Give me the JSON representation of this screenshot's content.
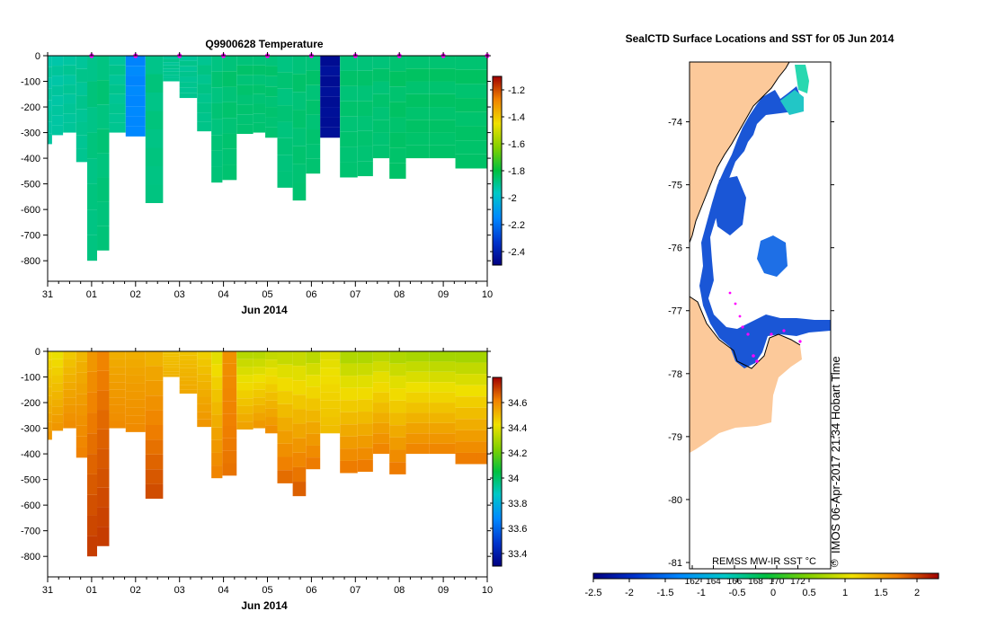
{
  "chart_data": [
    {
      "type": "heatmap",
      "title": "Q9900628  Temperature",
      "xlabel": "Jun 2014",
      "ylabel": "",
      "x_ticks": [
        "31",
        "01",
        "02",
        "03",
        "04",
        "05",
        "06",
        "07",
        "08",
        "09",
        "10"
      ],
      "y_ticks": [
        "0",
        "-100",
        "-200",
        "-300",
        "-400",
        "-500",
        "-600",
        "-700",
        "-800"
      ],
      "ylim": [
        -880,
        0
      ],
      "xlim_days": [
        0,
        10
      ],
      "colorbar": {
        "ticks": [
          "-1.2",
          "-1.4",
          "-1.6",
          "-1.8",
          "-2",
          "-2.2",
          "-2.4"
        ],
        "range": [
          -2.5,
          -1.1
        ]
      },
      "profiles": [
        {
          "t": 0.0,
          "depth": 345,
          "value": -1.92
        },
        {
          "t": 0.2,
          "depth": 310,
          "value": -1.92
        },
        {
          "t": 0.5,
          "depth": 300,
          "value": -1.91
        },
        {
          "t": 0.8,
          "depth": 415,
          "value": -1.9
        },
        {
          "t": 1.0,
          "depth": 800,
          "value": -1.88
        },
        {
          "t": 1.25,
          "depth": 760,
          "value": -1.87
        },
        {
          "t": 1.55,
          "depth": 300,
          "value": -1.9
        },
        {
          "t": 2.0,
          "depth": 315,
          "value": -2.15
        },
        {
          "t": 2.45,
          "depth": 575,
          "value": -1.88
        },
        {
          "t": 2.8,
          "depth": 100,
          "value": -1.9
        },
        {
          "t": 3.2,
          "depth": 165,
          "value": -1.9
        },
        {
          "t": 3.6,
          "depth": 295,
          "value": -1.89
        },
        {
          "t": 3.85,
          "depth": 495,
          "value": -1.87
        },
        {
          "t": 4.1,
          "depth": 485,
          "value": -1.86
        },
        {
          "t": 4.5,
          "depth": 305,
          "value": -1.86
        },
        {
          "t": 4.85,
          "depth": 300,
          "value": -1.86
        },
        {
          "t": 5.05,
          "depth": 320,
          "value": -1.86
        },
        {
          "t": 5.4,
          "depth": 515,
          "value": -1.87
        },
        {
          "t": 5.75,
          "depth": 565,
          "value": -1.86
        },
        {
          "t": 6.0,
          "depth": 460,
          "value": -1.86
        },
        {
          "t": 6.4,
          "depth": 320,
          "value": -2.45
        },
        {
          "t": 6.9,
          "depth": 475,
          "value": -1.86
        },
        {
          "t": 7.2,
          "depth": 470,
          "value": -1.86
        },
        {
          "t": 7.6,
          "depth": 400,
          "value": -1.86
        },
        {
          "t": 7.95,
          "depth": 480,
          "value": -1.85
        },
        {
          "t": 8.35,
          "depth": 400,
          "value": -1.85
        },
        {
          "t": 9.0,
          "depth": 400,
          "value": -1.85
        },
        {
          "t": 9.55,
          "depth": 440,
          "value": -1.85
        },
        {
          "t": 10.0,
          "depth": 440,
          "value": -1.85
        }
      ],
      "markers_t": [
        1.0,
        2.0,
        3.0,
        4.0,
        5.0,
        6.0,
        7.0,
        8.0,
        9.0,
        10.0
      ]
    },
    {
      "type": "heatmap",
      "title": "",
      "xlabel": "Jun 2014",
      "ylabel": "",
      "x_ticks": [
        "31",
        "01",
        "02",
        "03",
        "04",
        "05",
        "06",
        "07",
        "08",
        "09",
        "10"
      ],
      "y_ticks": [
        "0",
        "-100",
        "-200",
        "-300",
        "-400",
        "-500",
        "-600",
        "-700",
        "-800"
      ],
      "ylim": [
        -880,
        0
      ],
      "xlim_days": [
        0,
        10
      ],
      "colorbar": {
        "ticks": [
          "34.6",
          "34.4",
          "34.2",
          "34",
          "33.8",
          "33.6",
          "33.4"
        ],
        "range": [
          33.3,
          34.8
        ]
      },
      "profiles": [
        {
          "t": 0.0,
          "depth": 345,
          "surface": 34.42,
          "bottom": 34.58
        },
        {
          "t": 0.2,
          "depth": 310,
          "surface": 34.4,
          "bottom": 34.58
        },
        {
          "t": 0.5,
          "depth": 300,
          "surface": 34.46,
          "bottom": 34.6
        },
        {
          "t": 0.8,
          "depth": 415,
          "surface": 34.5,
          "bottom": 34.62
        },
        {
          "t": 1.0,
          "depth": 800,
          "surface": 34.56,
          "bottom": 34.72
        },
        {
          "t": 1.25,
          "depth": 760,
          "surface": 34.6,
          "bottom": 34.72
        },
        {
          "t": 1.55,
          "depth": 300,
          "surface": 34.52,
          "bottom": 34.6
        },
        {
          "t": 2.0,
          "depth": 315,
          "surface": 34.52,
          "bottom": 34.6
        },
        {
          "t": 2.45,
          "depth": 575,
          "surface": 34.5,
          "bottom": 34.7
        },
        {
          "t": 2.8,
          "depth": 100,
          "surface": 34.48,
          "bottom": 34.52
        },
        {
          "t": 3.2,
          "depth": 165,
          "surface": 34.48,
          "bottom": 34.54
        },
        {
          "t": 3.6,
          "depth": 295,
          "surface": 34.45,
          "bottom": 34.58
        },
        {
          "t": 3.85,
          "depth": 495,
          "surface": 34.38,
          "bottom": 34.62
        },
        {
          "t": 4.1,
          "depth": 485,
          "surface": 34.58,
          "bottom": 34.64
        },
        {
          "t": 4.5,
          "depth": 305,
          "surface": 34.3,
          "bottom": 34.56
        },
        {
          "t": 4.85,
          "depth": 300,
          "surface": 34.3,
          "bottom": 34.58
        },
        {
          "t": 5.05,
          "depth": 320,
          "surface": 34.32,
          "bottom": 34.6
        },
        {
          "t": 5.4,
          "depth": 515,
          "surface": 34.32,
          "bottom": 34.66
        },
        {
          "t": 5.75,
          "depth": 565,
          "surface": 34.32,
          "bottom": 34.68
        },
        {
          "t": 6.0,
          "depth": 460,
          "surface": 34.3,
          "bottom": 34.64
        },
        {
          "t": 6.4,
          "depth": 320,
          "surface": 34.38,
          "bottom": 34.5
        },
        {
          "t": 6.9,
          "depth": 475,
          "surface": 34.28,
          "bottom": 34.64
        },
        {
          "t": 7.2,
          "depth": 470,
          "surface": 34.28,
          "bottom": 34.64
        },
        {
          "t": 7.6,
          "depth": 400,
          "surface": 34.3,
          "bottom": 34.62
        },
        {
          "t": 7.95,
          "depth": 480,
          "surface": 34.28,
          "bottom": 34.64
        },
        {
          "t": 8.35,
          "depth": 400,
          "surface": 34.27,
          "bottom": 34.62
        },
        {
          "t": 9.0,
          "depth": 400,
          "surface": 34.26,
          "bottom": 34.62
        },
        {
          "t": 9.55,
          "depth": 440,
          "surface": 34.26,
          "bottom": 34.64
        },
        {
          "t": 10.0,
          "depth": 440,
          "surface": 34.26,
          "bottom": 34.64
        }
      ]
    },
    {
      "type": "heatmap",
      "title": "SealCTD Surface Locations and SST for 05 Jun 2014",
      "y_ticks": [
        "-74",
        "-75",
        "-76",
        "-77",
        "-78",
        "-79",
        "-80",
        "-81"
      ],
      "ylim": [
        -81.1,
        -73.05
      ],
      "lon_ticks": [
        "162",
        "164",
        "166",
        "168",
        "170",
        "172"
      ],
      "colorbar": {
        "ticks": [
          "-2.5",
          "-2",
          "-1.5",
          "-1",
          "-0.5",
          "0",
          "0.5",
          "1",
          "1.5",
          "2"
        ],
        "range": [
          -2.5,
          2.3
        ]
      },
      "annotation": "REMSS MW-IR SST °C",
      "credit": "IMOS 06-Apr-2017 21:34 Hobart Time"
    }
  ]
}
